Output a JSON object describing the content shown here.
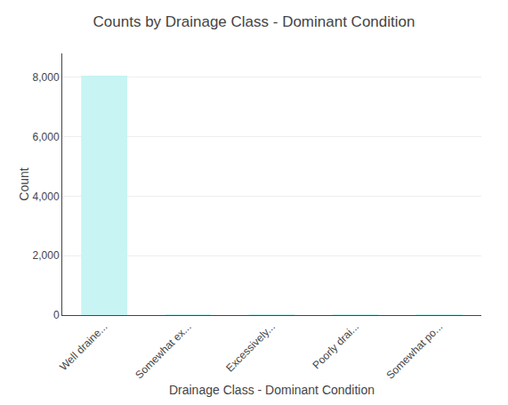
{
  "chart_data": {
    "type": "bar",
    "title": "Counts by Drainage Class - Dominant Condition",
    "xlabel": "Drainage Class - Dominant Condition",
    "ylabel": "Count",
    "categories": [
      "Well draine...",
      "Somewhat ex...",
      "Excessively...",
      "Poorly drai...",
      "Somewhat po..."
    ],
    "values": [
      8050,
      12,
      8,
      5,
      10
    ],
    "color": "#c8f4f4",
    "ylim": [
      0,
      8800
    ],
    "yticks": [
      0,
      {
        "value": 2000,
        "label": "2,000"
      },
      {
        "value": 4000,
        "label": "4,000"
      },
      {
        "value": 6000,
        "label": "6,000"
      },
      {
        "value": 8000,
        "label": "8,000"
      }
    ],
    "grid": true
  }
}
